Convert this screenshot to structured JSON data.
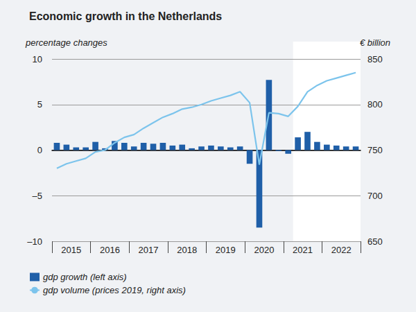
{
  "chart_data": {
    "type": "bar",
    "title": "Economic growth in the Netherlands",
    "y_label": "percentage changes",
    "y2_label": "€ billion",
    "categories": [
      null,
      "2015",
      null,
      null,
      null,
      "2016",
      null,
      null,
      null,
      "2017",
      null,
      null,
      null,
      "2018",
      null,
      null,
      null,
      "2019",
      null,
      null,
      null,
      "2020",
      null,
      null,
      null,
      "2021",
      null,
      null,
      null,
      "2022",
      null,
      null
    ],
    "series": [
      {
        "name": "gdp growth (left axis)",
        "type": "bar",
        "color": "#1f5fa8",
        "values": [
          0.8,
          0.6,
          0.3,
          0.3,
          0.9,
          0.2,
          1.0,
          0.8,
          0.4,
          0.8,
          0.7,
          0.8,
          0.5,
          0.6,
          0.2,
          0.4,
          0.5,
          0.4,
          0.3,
          0.4,
          -1.5,
          -8.5,
          7.7,
          -0.1,
          -0.4,
          1.4,
          2.0,
          0.9,
          0.6,
          0.5,
          0.4,
          0.4
        ]
      },
      {
        "name": "gdp volume (prices 2019, right axis)",
        "type": "line",
        "color": "#7cc4ec",
        "axis": "y2",
        "line_style": "solid",
        "values": [
          730,
          735,
          738,
          741,
          748,
          750,
          758,
          764,
          767,
          774,
          780,
          786,
          790,
          795,
          797,
          800,
          804,
          807,
          810,
          814,
          802,
          734,
          791,
          790,
          787,
          798,
          814,
          821,
          826,
          829,
          832,
          835
        ]
      }
    ],
    "ylim": [
      -10,
      10
    ],
    "yticks": [
      {
        "value": -10,
        "label": "–10"
      },
      {
        "value": -5,
        "label": "–5"
      },
      0,
      5,
      10
    ],
    "y2lim": [
      650,
      850
    ],
    "y2ticks": [
      650,
      700,
      750,
      800,
      850
    ],
    "forecast_from": 25,
    "grid": true,
    "legend": "bottom"
  }
}
